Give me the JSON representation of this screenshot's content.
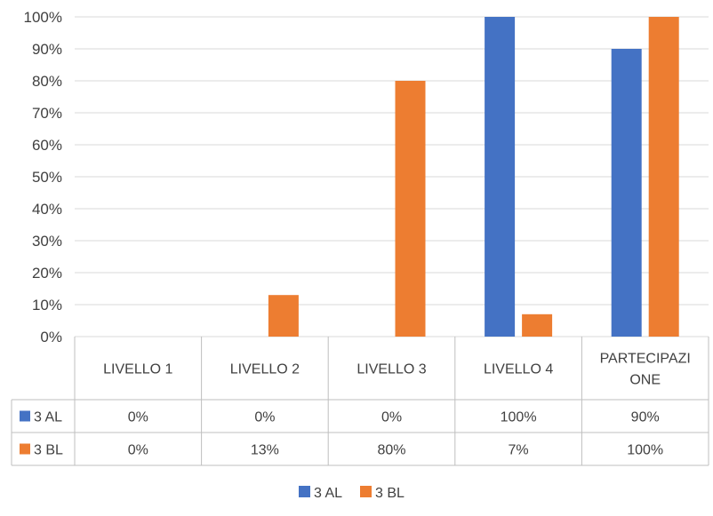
{
  "chart_data": {
    "type": "bar",
    "categories": [
      {
        "lines": [
          "LIVELLO 1"
        ]
      },
      {
        "lines": [
          "LIVELLO 2"
        ]
      },
      {
        "lines": [
          "LIVELLO 3"
        ]
      },
      {
        "lines": [
          "LIVELLO 4"
        ]
      },
      {
        "lines": [
          "PARTECIPAZI",
          "ONE"
        ]
      }
    ],
    "series": [
      {
        "name": "3 AL",
        "color": "#4472C4",
        "values": [
          0,
          0,
          0,
          100,
          90
        ],
        "labels": [
          "0%",
          "0%",
          "0%",
          "100%",
          "90%"
        ]
      },
      {
        "name": "3 BL",
        "color": "#ED7D31",
        "values": [
          0,
          13,
          80,
          7,
          100
        ],
        "labels": [
          "0%",
          "13%",
          "80%",
          "7%",
          "100%"
        ]
      }
    ],
    "ylim": [
      0,
      100
    ],
    "yticks": [
      "0%",
      "10%",
      "20%",
      "30%",
      "40%",
      "50%",
      "60%",
      "70%",
      "80%",
      "90%",
      "100%"
    ],
    "grid": true,
    "legend": "bottom-center",
    "data_table": true
  }
}
